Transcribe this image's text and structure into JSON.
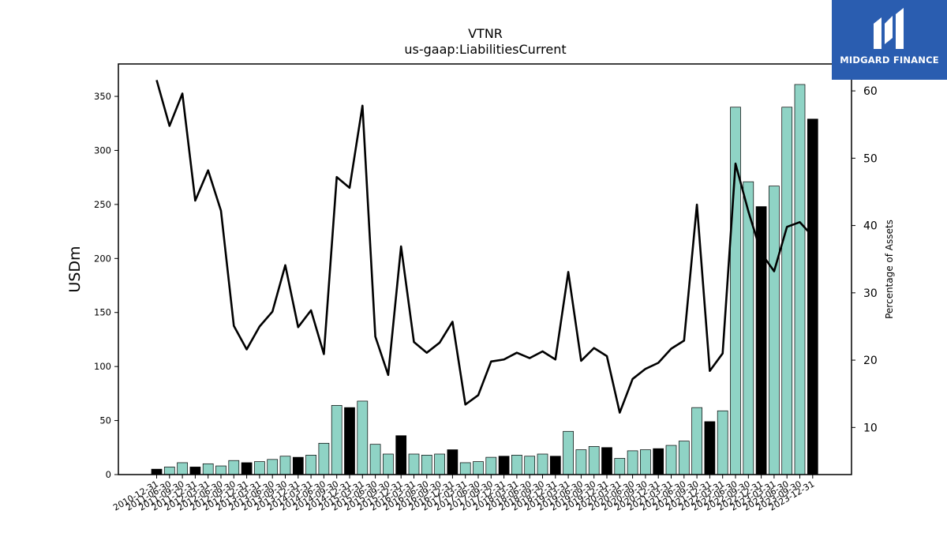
{
  "chart_data": {
    "type": "bar",
    "title": "VTNR",
    "subtitle": "us-gaap:LiabilitiesCurrent",
    "ylabel": "USDm",
    "y2label": "Percentage of Assets",
    "ylim": [
      0,
      380
    ],
    "y2lim": [
      3,
      64
    ],
    "yticks": [
      0,
      50,
      100,
      150,
      200,
      250,
      300,
      350
    ],
    "y2ticks": [
      10,
      20,
      30,
      40,
      50,
      60
    ],
    "bar_colors": {
      "default": "#8fd3c5",
      "year_end": "#000000"
    },
    "line_color": "#000000",
    "categories": [
      "2010-12-31",
      "2011-06-30",
      "2011-09-30",
      "2011-12-31",
      "2012-03-31",
      "2012-06-30",
      "2012-09-30",
      "2012-12-31",
      "2013-03-31",
      "2013-06-30",
      "2013-09-30",
      "2013-12-31",
      "2014-03-31",
      "2014-06-30",
      "2014-09-30",
      "2014-12-31",
      "2015-03-31",
      "2015-06-30",
      "2015-09-30",
      "2015-12-31",
      "2016-03-31",
      "2016-06-30",
      "2016-09-30",
      "2016-12-31",
      "2017-03-31",
      "2017-06-30",
      "2017-09-30",
      "2017-12-31",
      "2018-03-31",
      "2018-06-30",
      "2018-09-30",
      "2018-12-31",
      "2019-03-31",
      "2019-06-30",
      "2019-09-30",
      "2019-12-31",
      "2020-03-31",
      "2020-06-30",
      "2020-09-30",
      "2020-12-31",
      "2021-03-31",
      "2021-06-30",
      "2021-09-30",
      "2021-12-31",
      "2022-03-31",
      "2022-06-30",
      "2022-09-30",
      "2022-12-31",
      "2023-03-31",
      "2023-06-30",
      "2023-09-30",
      "2023-12-31"
    ],
    "series": [
      {
        "kind": "bar",
        "values": [
          5,
          7,
          11,
          7,
          10,
          8,
          13,
          11,
          12,
          14,
          17,
          16,
          18,
          29,
          64,
          62,
          68,
          28,
          19,
          36,
          19,
          18,
          19,
          23,
          11,
          12,
          16,
          17,
          18,
          17,
          19,
          17,
          40,
          23,
          26,
          25,
          15,
          22,
          23,
          24,
          27,
          31,
          62,
          49,
          59,
          340,
          271,
          248,
          267,
          340,
          361,
          329
        ],
        "year_end": [
          true,
          false,
          false,
          true,
          false,
          false,
          false,
          true,
          false,
          false,
          false,
          true,
          false,
          false,
          false,
          true,
          false,
          false,
          false,
          true,
          false,
          false,
          false,
          true,
          false,
          false,
          false,
          true,
          false,
          false,
          false,
          true,
          false,
          false,
          false,
          true,
          false,
          false,
          false,
          true,
          false,
          false,
          false,
          true,
          false,
          false,
          false,
          true,
          false,
          false,
          false,
          true
        ]
      },
      {
        "kind": "line",
        "axis": "right",
        "values": [
          61.6,
          54.8,
          59.6,
          43.7,
          48.2,
          42.2,
          25.1,
          21.6,
          25.0,
          27.2,
          34.1,
          24.9,
          27.4,
          20.9,
          47.2,
          45.6,
          57.8,
          23.5,
          17.8,
          36.9,
          22.7,
          21.1,
          22.6,
          25.7,
          13.4,
          14.8,
          19.8,
          20.1,
          21.1,
          20.3,
          21.3,
          20.1,
          33.1,
          19.9,
          21.8,
          20.6,
          12.2,
          17.2,
          18.7,
          19.6,
          21.7,
          22.9,
          43.1,
          18.4,
          21.0,
          49.2,
          42.1,
          35.9,
          33.2,
          39.8,
          40.5,
          38.4
        ]
      }
    ]
  },
  "logo": {
    "text": "MIDGARD FINANCE"
  }
}
